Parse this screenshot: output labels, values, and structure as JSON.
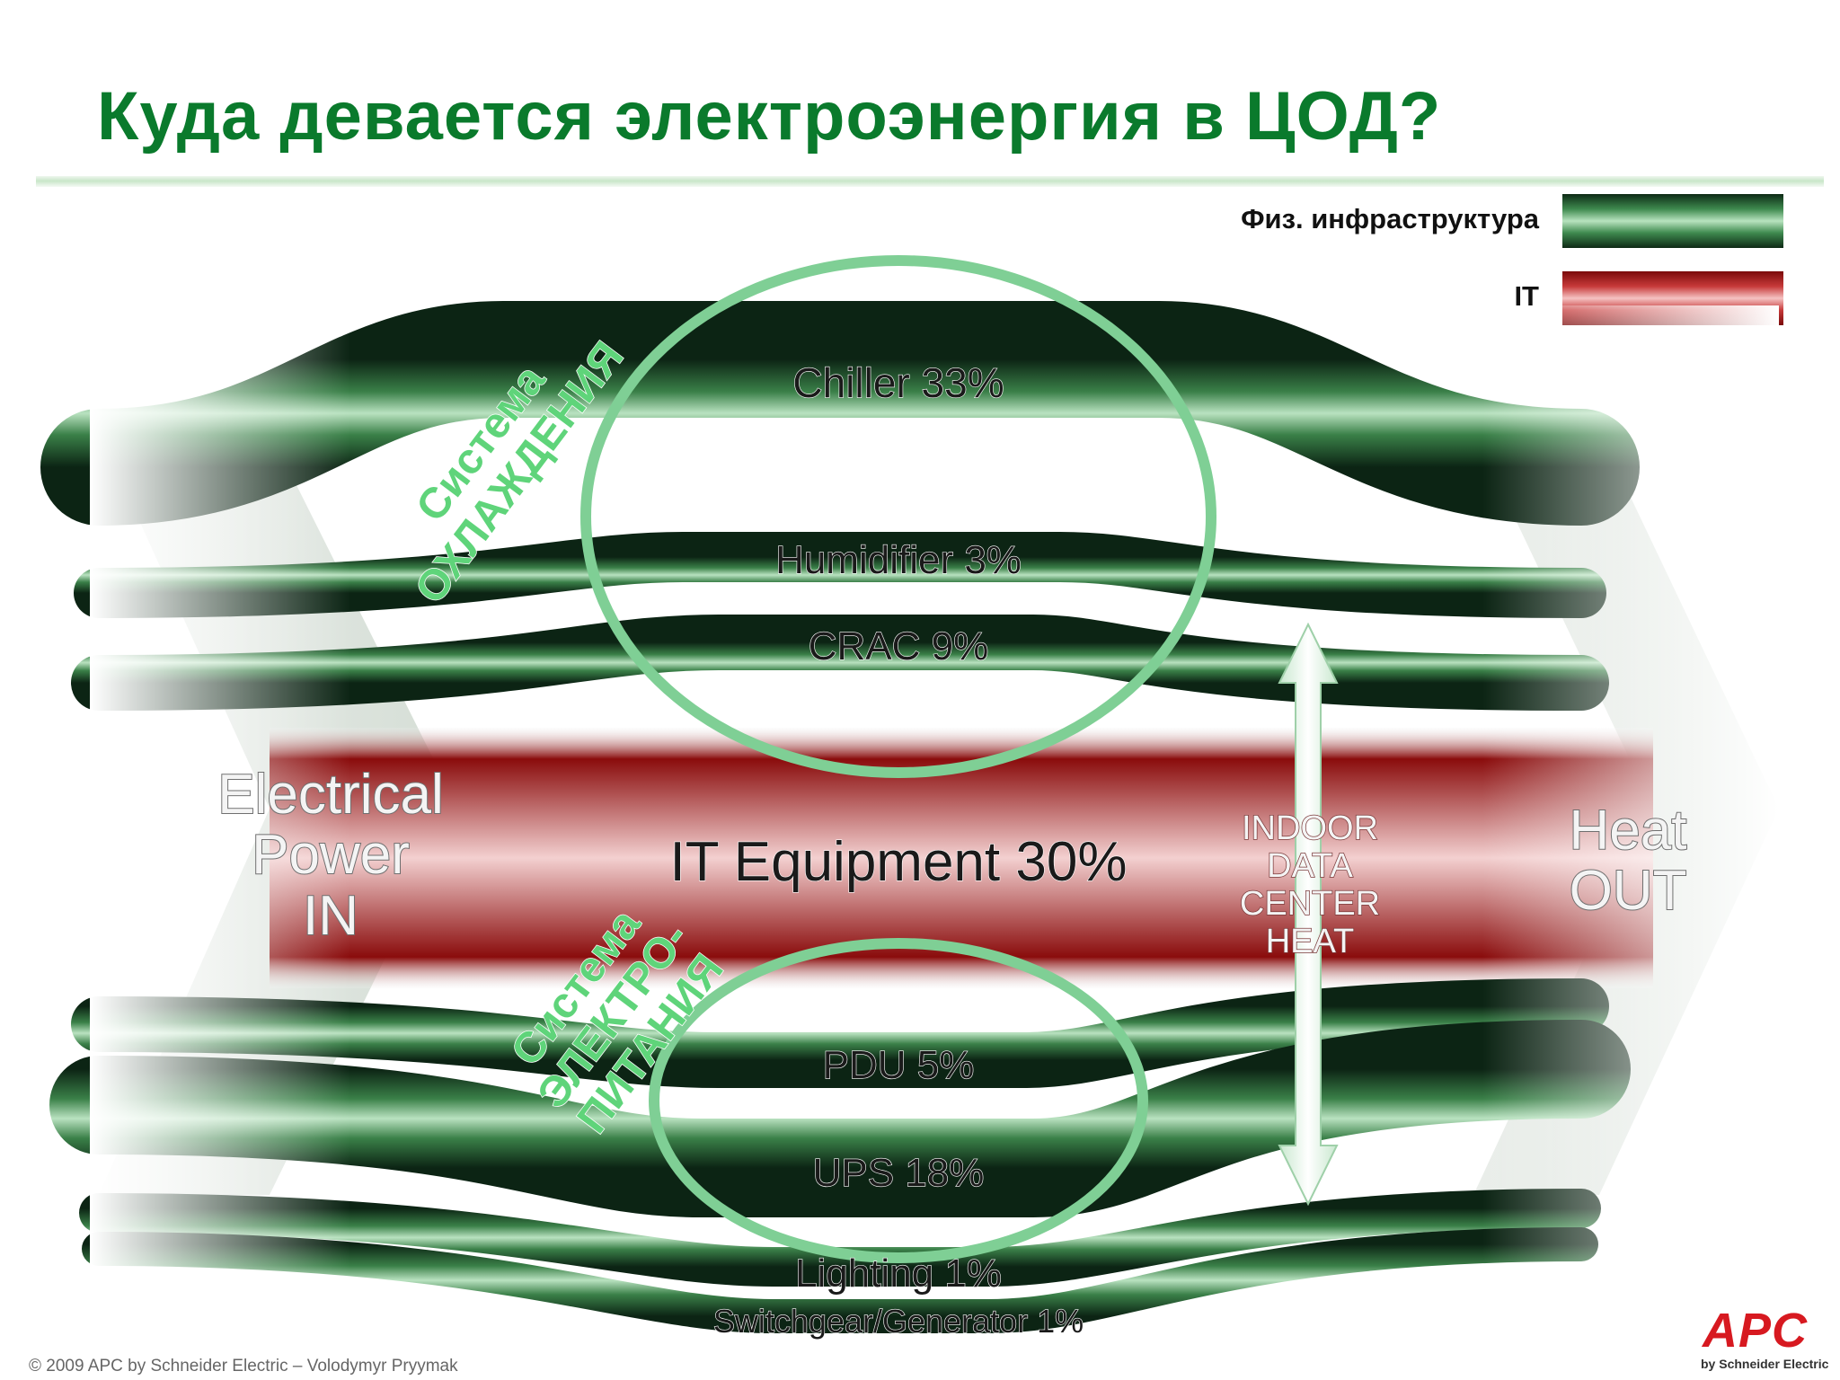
{
  "title": "Куда девается электроэнергия в ЦОД?",
  "legend": [
    {
      "label": "Физ. инфраструктура",
      "color": "#2f7a3e"
    },
    {
      "label": "IT",
      "color": "#c0262a"
    }
  ],
  "left_label": [
    "Electrical",
    "Power",
    "IN"
  ],
  "right_label": [
    "Heat",
    "OUT"
  ],
  "indoor_label": [
    "INDOOR",
    "DATA",
    "CENTER",
    "HEAT"
  ],
  "cooling_group": [
    "Система",
    "ОХЛАЖДЕНИЯ"
  ],
  "power_group": [
    "Система",
    "ЭЛЕКТРО-",
    "ПИТАНИЯ"
  ],
  "flows": [
    {
      "label": "Chiller 33%",
      "name": "Chiller",
      "percent": 33,
      "kind": "infrastructure"
    },
    {
      "label": "Humidifier 3%",
      "name": "Humidifier",
      "percent": 3,
      "kind": "infrastructure"
    },
    {
      "label": "CRAC 9%",
      "name": "CRAC",
      "percent": 9,
      "kind": "infrastructure"
    },
    {
      "label": "IT Equipment 30%",
      "name": "IT Equipment",
      "percent": 30,
      "kind": "it"
    },
    {
      "label": "PDU 5%",
      "name": "PDU",
      "percent": 5,
      "kind": "infrastructure"
    },
    {
      "label": "UPS 18%",
      "name": "UPS",
      "percent": 18,
      "kind": "infrastructure"
    },
    {
      "label": "Lighting 1%",
      "name": "Lighting",
      "percent": 1,
      "kind": "infrastructure"
    },
    {
      "label": "Switchgear/Generator 1%",
      "name": "Switchgear/Generator",
      "percent": 1,
      "kind": "infrastructure"
    }
  ],
  "footer": "© 2009 APC by Schneider Electric – Volodymyr Pryymak",
  "logo": {
    "main": "APC",
    "sub": "by Schneider Electric"
  }
}
